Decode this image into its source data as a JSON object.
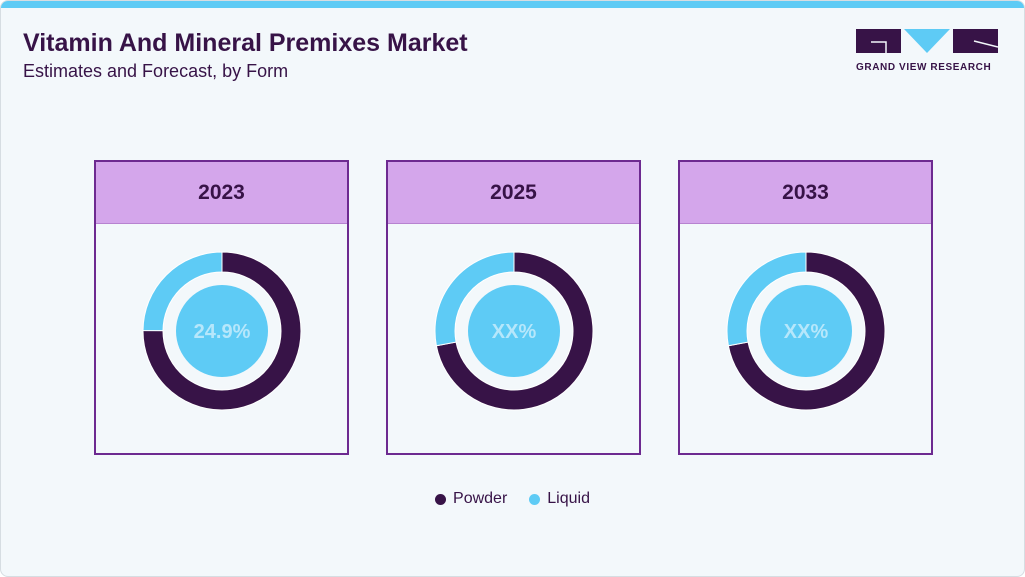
{
  "title": "Vitamin And Mineral Premixes Market",
  "subtitle": "Estimates and Forecast, by Form",
  "logo": {
    "text": "GRAND VIEW RESEARCH"
  },
  "colors": {
    "Powder": "#371347",
    "Liquid": "#5ecbf5",
    "center_text": "#b6e7fb"
  },
  "chart_data": {
    "type": "pie",
    "series_names": [
      "Powder",
      "Liquid"
    ],
    "charts": [
      {
        "year": "2023",
        "label": "24.9%",
        "values": {
          "Powder": 75.1,
          "Liquid": 24.9
        }
      },
      {
        "year": "2025",
        "label": "XX%",
        "values": {
          "Powder": 72,
          "Liquid": 28
        }
      },
      {
        "year": "2033",
        "label": "XX%",
        "values": {
          "Powder": 72,
          "Liquid": 28
        }
      }
    ],
    "legend": [
      {
        "name": "Powder"
      },
      {
        "name": "Liquid"
      }
    ],
    "legend_position": "bottom"
  }
}
